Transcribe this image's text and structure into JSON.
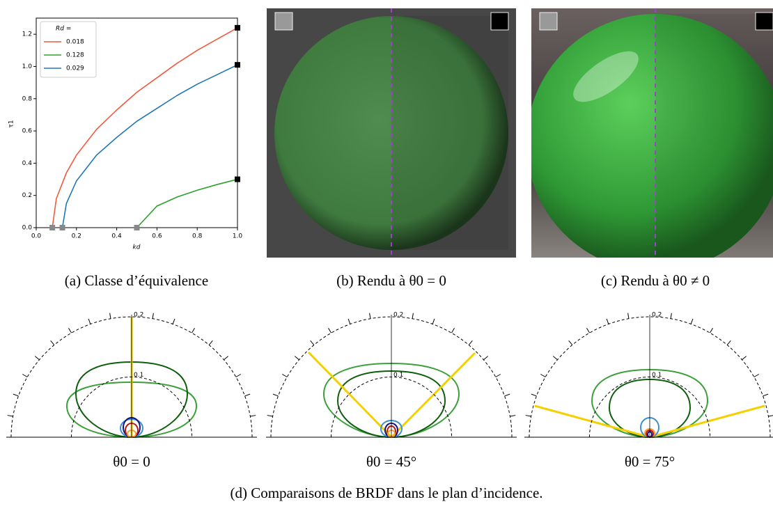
{
  "chart_data": {
    "type": "line",
    "legend_title": "Rd =",
    "x_label": "kd",
    "y_label": "τ1",
    "xlim": [
      0,
      1
    ],
    "ylim": [
      0,
      1.3
    ],
    "xticks": [
      {
        "value": 0,
        "label": "0.0"
      },
      {
        "value": 0.2,
        "label": "0.2"
      },
      {
        "value": 0.4,
        "label": "0.4"
      },
      {
        "value": 0.6,
        "label": "0.6"
      },
      {
        "value": 0.8,
        "label": "0.8"
      },
      {
        "value": 1,
        "label": "1.0"
      }
    ],
    "yticks": [
      {
        "value": 0,
        "label": "0.0"
      },
      {
        "value": 0.2,
        "label": "0.2"
      },
      {
        "value": 0.4,
        "label": "0.4"
      },
      {
        "value": 0.6,
        "label": "0.6"
      },
      {
        "value": 0.8,
        "label": "0.8"
      },
      {
        "value": 1,
        "label": "1.0"
      },
      {
        "value": 1.2,
        "label": "1.2"
      }
    ],
    "series": [
      {
        "name": "0.018",
        "color": "#f05a3c",
        "x": [
          0.08,
          0.1,
          0.15,
          0.2,
          0.3,
          0.4,
          0.5,
          0.6,
          0.7,
          0.8,
          0.9,
          1.0
        ],
        "values": [
          0,
          0.18,
          0.34,
          0.45,
          0.61,
          0.73,
          0.84,
          0.93,
          1.02,
          1.1,
          1.17,
          1.24
        ]
      },
      {
        "name": "0.128",
        "color": "#2ca02c",
        "x": [
          0.5,
          0.6,
          0.7,
          0.8,
          0.9,
          1.0
        ],
        "values": [
          0,
          0.134,
          0.19,
          0.232,
          0.268,
          0.3
        ]
      },
      {
        "name": "0.029",
        "color": "#1f77b4",
        "x": [
          0.13,
          0.15,
          0.2,
          0.3,
          0.4,
          0.5,
          0.6,
          0.7,
          0.8,
          0.9,
          1.0
        ],
        "values": [
          0,
          0.15,
          0.29,
          0.45,
          0.56,
          0.66,
          0.74,
          0.82,
          0.89,
          0.95,
          1.01
        ]
      }
    ]
  },
  "captions": [
    "(a) Classe d’équivalence",
    "(b) Rendu à θ0 = 0",
    "(c) Rendu à θ0 ≠ 0"
  ],
  "polar_plots": [
    {
      "rticks": [
        0.1,
        0.2
      ],
      "caption": "θ0 = 0"
    },
    {
      "rticks": [
        0.1,
        0.2
      ],
      "caption": "θ0 = 45°"
    },
    {
      "rticks": [
        0.1,
        0.2
      ],
      "caption": "θ0 = 75°"
    }
  ],
  "figure_caption": "(d) Comparaisons de BRDF dans le plan d’incidence."
}
